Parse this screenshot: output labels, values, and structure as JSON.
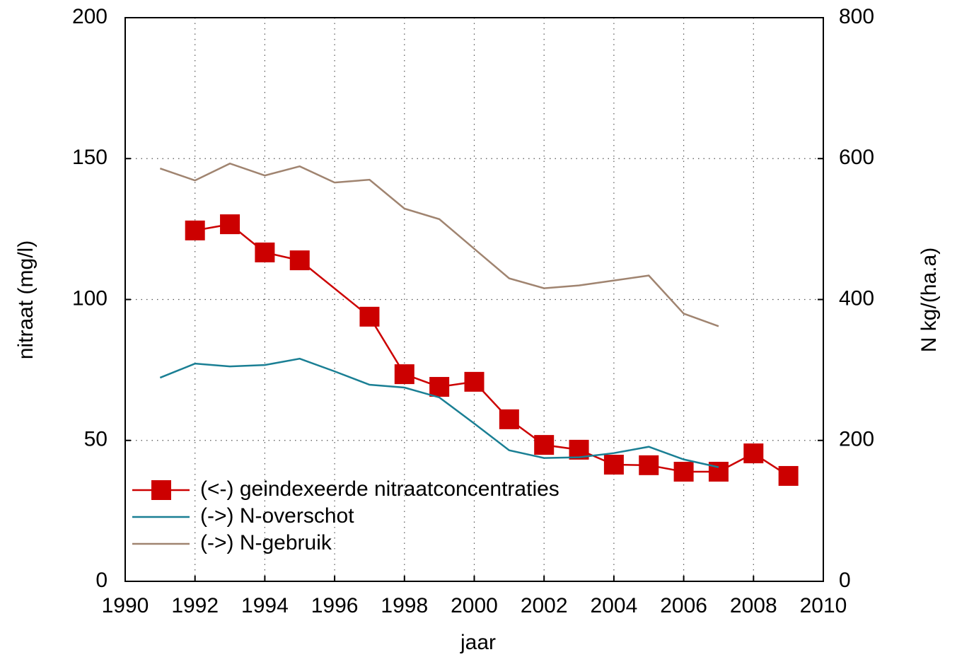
{
  "chart_data": {
    "type": "line",
    "xlabel": "jaar",
    "ylabel": "nitraat (mg/l)",
    "y2label": "N kg/(ha.a)",
    "xlim": [
      1990,
      2010
    ],
    "xticks": [
      1990,
      1992,
      1994,
      1996,
      1998,
      2000,
      2002,
      2004,
      2006,
      2008,
      2010
    ],
    "ylim": [
      0,
      200
    ],
    "yticks": [
      0,
      50,
      100,
      150,
      200
    ],
    "y2lim": [
      0,
      800
    ],
    "y2ticks": [
      0,
      200,
      400,
      600,
      800
    ],
    "grid": true,
    "legend": "lower left",
    "series": [
      {
        "name": "(<-)  geindexeerde nitraatconcentraties",
        "color": "#cc0000",
        "marker": "square",
        "x": [
          1992,
          1993,
          1994,
          1995,
          1997,
          1998,
          1999,
          2000,
          2001,
          2002,
          2003,
          2004,
          2005,
          2006,
          2007,
          2008,
          2009
        ],
        "values": [
          124.5,
          126.7,
          116.7,
          113.9,
          93.9,
          73.5,
          69.0,
          70.8,
          57.5,
          48.4,
          46.7,
          41.4,
          41.2,
          38.9,
          38.9,
          45.4,
          37.4
        ]
      },
      {
        "name": "(->)  N-overschot",
        "color": "#1a7f94",
        "axis": "y2",
        "x": [
          1991,
          1992,
          1993,
          1994,
          1995,
          1996,
          1997,
          1998,
          1999,
          2000,
          2001,
          2002,
          2003,
          2004,
          2005,
          2006,
          2007
        ],
        "values": [
          289,
          309,
          305,
          307,
          316,
          298,
          279,
          275,
          261,
          224,
          186,
          175,
          176,
          182,
          191,
          173,
          162
        ]
      },
      {
        "name": "(->)  N-gebruik",
        "color": "#a08470",
        "axis": "y2",
        "x": [
          1991,
          1992,
          1993,
          1994,
          1995,
          1996,
          1997,
          1998,
          1999,
          2000,
          2001,
          2002,
          2003,
          2004,
          2005,
          2006,
          2007
        ],
        "values": [
          586,
          569,
          593,
          576,
          589,
          566,
          570,
          529,
          514,
          472,
          430,
          416,
          420,
          427,
          434,
          380,
          362
        ]
      }
    ]
  }
}
